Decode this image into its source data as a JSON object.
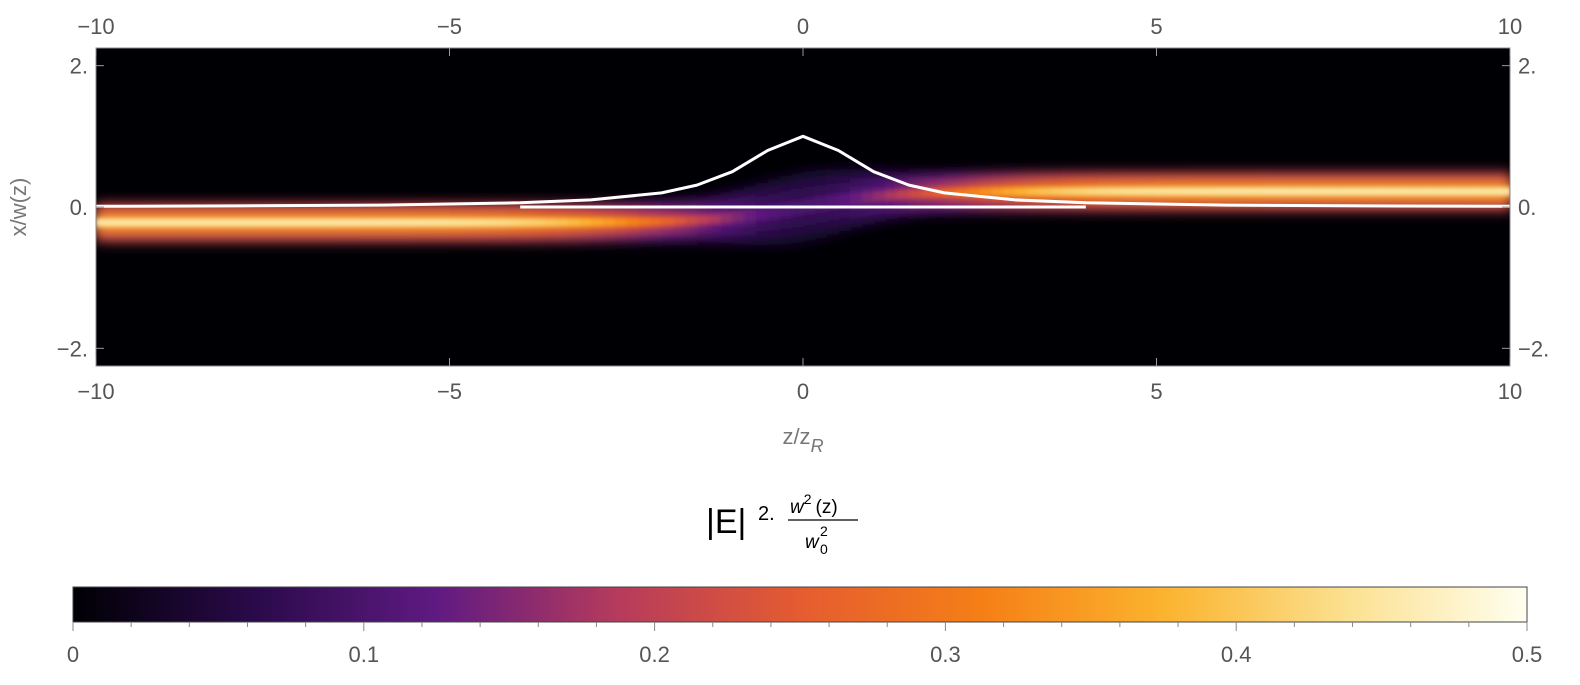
{
  "chart_data": [
    {
      "type": "heatmap",
      "title": "",
      "xlabel_main": "z/z",
      "xlabel_sub": "R",
      "ylabel": "x/w(z)",
      "xlim": [
        -10,
        10
      ],
      "ylim": [
        -2.25,
        2.25
      ],
      "x_ticks": [
        -10,
        -5,
        0,
        5,
        10
      ],
      "x_tick_labels": [
        "−10",
        "−5",
        "0",
        "5",
        "10"
      ],
      "y_ticks": [
        -2,
        0,
        2
      ],
      "y_tick_labels": [
        "−2.",
        "0.",
        "2."
      ],
      "top_and_right_axes_mirror_labels": true,
      "colormap": "black-purple-orange-yellow-white (inferno-like)",
      "field_description_points": {
        "beam_center_offset_at_z_minus10": -0.22,
        "beam_center_offset_at_z_plus10": 0.22,
        "beam_peak_intensity_far_field": 0.45,
        "beam_intensity_near_focus": 0.1
      },
      "overlay_curves": [
        {
          "kind": "line",
          "color": "#ffffff",
          "x": [
            -10,
            -8,
            -6,
            -4,
            -3,
            -2,
            -1.5,
            -1,
            -0.5,
            0,
            0.5,
            1,
            1.5,
            2,
            3,
            4,
            6,
            8,
            10
          ],
          "y": [
            0.01,
            0.015,
            0.027,
            0.059,
            0.1,
            0.2,
            0.31,
            0.5,
            0.8,
            1.0,
            0.8,
            0.5,
            0.31,
            0.2,
            0.1,
            0.059,
            0.027,
            0.015,
            0.01
          ]
        },
        {
          "kind": "line",
          "color": "#ffffff",
          "x": [
            -4,
            4
          ],
          "y": [
            0,
            0
          ]
        }
      ]
    },
    {
      "type": "colorbar",
      "title_main": "|E|",
      "title_exponent": "2",
      "title_frac_num_base": "w",
      "title_frac_num_sup": "2",
      "title_frac_num_arg": "(z)",
      "title_frac_den_base": "w",
      "title_frac_den_sub": "0",
      "title_frac_den_sup": "2",
      "range": [
        0,
        0.5
      ],
      "ticks": [
        0,
        0.1,
        0.2,
        0.3,
        0.4,
        0.5
      ],
      "tick_labels": [
        "0",
        "0.1",
        "0.2",
        "0.3",
        "0.4",
        "0.5"
      ],
      "colors": [
        "#000004",
        "#2a0a4a",
        "#5f1a82",
        "#b63b5c",
        "#e55c30",
        "#f57f16",
        "#fbb32e",
        "#fbe08f",
        "#fffff0"
      ]
    }
  ]
}
